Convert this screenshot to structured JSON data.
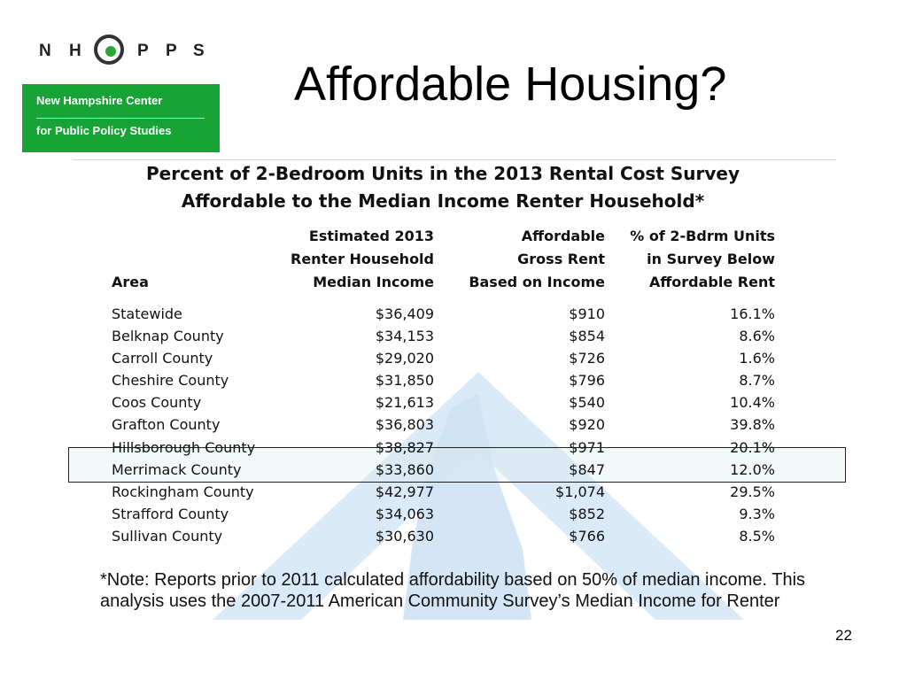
{
  "logo": {
    "letters": [
      "N",
      "H",
      "P",
      "P",
      "S"
    ],
    "line1": "New Hampshire Center",
    "line2": "for Public Policy Studies",
    "colors": {
      "green": "#17a335",
      "dark": "#333333"
    }
  },
  "slide": {
    "title": "Affordable Housing?",
    "page_number": "22"
  },
  "table": {
    "title_line1": "Percent of 2-Bedroom Units in the 2013 Rental Cost Survey",
    "title_line2": "Affordable to the Median Income Renter Household*",
    "headers": {
      "area": "Area",
      "income": [
        "Estimated 2013",
        "Renter Household",
        "Median Income"
      ],
      "rent": [
        "Affordable",
        "Gross Rent",
        "Based on Income"
      ],
      "pct": [
        "% of 2-Bdrm Units",
        "in Survey Below",
        "Affordable Rent"
      ]
    },
    "rows": [
      {
        "area": "Statewide",
        "income": "$36,409",
        "rent": "$910",
        "pct": "16.1%"
      },
      {
        "area": "Belknap County",
        "income": "$34,153",
        "rent": "$854",
        "pct": "8.6%"
      },
      {
        "area": "Carroll County",
        "income": "$29,020",
        "rent": "$726",
        "pct": "1.6%"
      },
      {
        "area": "Cheshire County",
        "income": "$31,850",
        "rent": "$796",
        "pct": "8.7%"
      },
      {
        "area": "Coos County",
        "income": "$21,613",
        "rent": "$540",
        "pct": "10.4%"
      },
      {
        "area": "Grafton County",
        "income": "$36,803",
        "rent": "$920",
        "pct": "39.8%"
      },
      {
        "area": "Hillsborough County",
        "income": "$38,827",
        "rent": "$971",
        "pct": "20.1%"
      },
      {
        "area": "Merrimack County",
        "income": "$33,860",
        "rent": "$847",
        "pct": "12.0%"
      },
      {
        "area": "Rockingham County",
        "income": "$42,977",
        "rent": "$1,074",
        "pct": "29.5%"
      },
      {
        "area": "Strafford County",
        "income": "$34,063",
        "rent": "$852",
        "pct": "9.3%"
      },
      {
        "area": "Sullivan County",
        "income": "$30,630",
        "rent": "$766",
        "pct": "8.5%"
      }
    ],
    "note": "*Note: Reports prior to 2011 calculated affordability based on 50% of median income. This analysis uses the 2007-2011 American Community Survey’s Median Income for Renter"
  }
}
